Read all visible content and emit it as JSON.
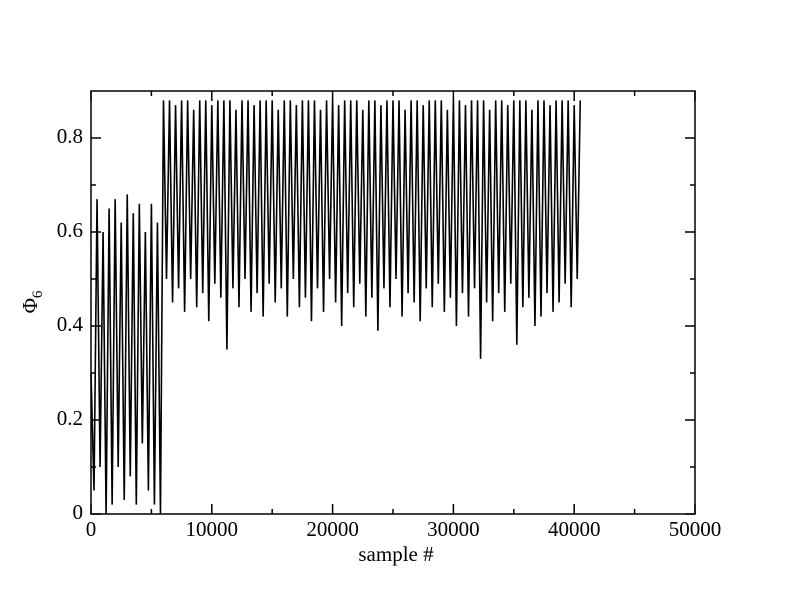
{
  "chart_data": {
    "type": "line",
    "xlabel": "sample #",
    "ylabel": {
      "text": "Φ",
      "subscript": "6"
    },
    "xlim": [
      0,
      50000
    ],
    "xticks": [
      0,
      10000,
      20000,
      30000,
      40000,
      50000
    ],
    "xminorticks": [
      5000,
      15000,
      25000,
      35000,
      45000
    ],
    "ylim": [
      0,
      0.9
    ],
    "yticks": [
      0,
      0.2,
      0.4,
      0.6,
      0.8
    ],
    "yminorticks": [
      0.1,
      0.3,
      0.5,
      0.7
    ],
    "series": [
      {
        "color": "#000000",
        "x": [
          0,
          250,
          500,
          750,
          1000,
          1250,
          1500,
          1750,
          2000,
          2250,
          2500,
          2750,
          3000,
          3250,
          3500,
          3750,
          4000,
          4250,
          4500,
          4750,
          5000,
          5250,
          5500,
          5750,
          6000,
          6250,
          6500,
          6750,
          7000,
          7250,
          7500,
          7750,
          8000,
          8250,
          8500,
          8750,
          9000,
          9250,
          9500,
          9750,
          10000,
          10250,
          10500,
          10750,
          11000,
          11250,
          11500,
          11750,
          12000,
          12250,
          12500,
          12750,
          13000,
          13250,
          13500,
          13750,
          14000,
          14250,
          14500,
          14750,
          15000,
          15250,
          15500,
          15750,
          16000,
          16250,
          16500,
          16750,
          17000,
          17250,
          17500,
          17750,
          18000,
          18250,
          18500,
          18750,
          19000,
          19250,
          19500,
          19750,
          20000,
          20250,
          20500,
          20750,
          21000,
          21250,
          21500,
          21750,
          22000,
          22250,
          22500,
          22750,
          23000,
          23250,
          23500,
          23750,
          24000,
          24250,
          24500,
          24750,
          25000,
          25250,
          25500,
          25750,
          26000,
          26250,
          26500,
          26750,
          27000,
          27250,
          27500,
          27750,
          28000,
          28250,
          28500,
          28750,
          29000,
          29250,
          29500,
          29750,
          30000,
          30250,
          30500,
          30750,
          31000,
          31250,
          31500,
          31750,
          32000,
          32250,
          32500,
          32750,
          33000,
          33250,
          33500,
          33750,
          34000,
          34250,
          34500,
          34750,
          35000,
          35250,
          35500,
          35750,
          36000,
          36250,
          36500,
          36750,
          37000,
          37250,
          37500,
          37750,
          38000,
          38250,
          38500,
          38750,
          39000,
          39250,
          39500,
          39750,
          40000,
          40250,
          40500
        ],
        "values": [
          0.3,
          0.05,
          0.67,
          0.1,
          0.6,
          0.0,
          0.65,
          0.02,
          0.67,
          0.1,
          0.62,
          0.03,
          0.68,
          0.08,
          0.64,
          0.02,
          0.66,
          0.15,
          0.6,
          0.05,
          0.66,
          0.02,
          0.62,
          0.0,
          0.88,
          0.5,
          0.88,
          0.45,
          0.87,
          0.48,
          0.88,
          0.43,
          0.88,
          0.5,
          0.86,
          0.44,
          0.88,
          0.47,
          0.88,
          0.41,
          0.87,
          0.49,
          0.88,
          0.46,
          0.88,
          0.35,
          0.88,
          0.48,
          0.86,
          0.44,
          0.88,
          0.5,
          0.88,
          0.43,
          0.87,
          0.47,
          0.88,
          0.42,
          0.88,
          0.49,
          0.88,
          0.45,
          0.86,
          0.48,
          0.88,
          0.42,
          0.88,
          0.5,
          0.87,
          0.44,
          0.88,
          0.46,
          0.88,
          0.41,
          0.88,
          0.48,
          0.86,
          0.43,
          0.88,
          0.5,
          0.88,
          0.45,
          0.87,
          0.4,
          0.88,
          0.47,
          0.88,
          0.44,
          0.88,
          0.49,
          0.86,
          0.42,
          0.88,
          0.46,
          0.88,
          0.39,
          0.87,
          0.48,
          0.88,
          0.44,
          0.88,
          0.5,
          0.88,
          0.42,
          0.86,
          0.47,
          0.88,
          0.45,
          0.88,
          0.41,
          0.87,
          0.48,
          0.88,
          0.44,
          0.88,
          0.49,
          0.88,
          0.43,
          0.86,
          0.46,
          0.88,
          0.4,
          0.88,
          0.47,
          0.87,
          0.42,
          0.88,
          0.48,
          0.88,
          0.33,
          0.88,
          0.45,
          0.86,
          0.41,
          0.88,
          0.47,
          0.88,
          0.43,
          0.87,
          0.49,
          0.88,
          0.36,
          0.88,
          0.44,
          0.88,
          0.46,
          0.86,
          0.4,
          0.88,
          0.42,
          0.88,
          0.47,
          0.87,
          0.43,
          0.88,
          0.45,
          0.88,
          0.49,
          0.88,
          0.44,
          0.87,
          0.5,
          0.88
        ]
      }
    ]
  }
}
